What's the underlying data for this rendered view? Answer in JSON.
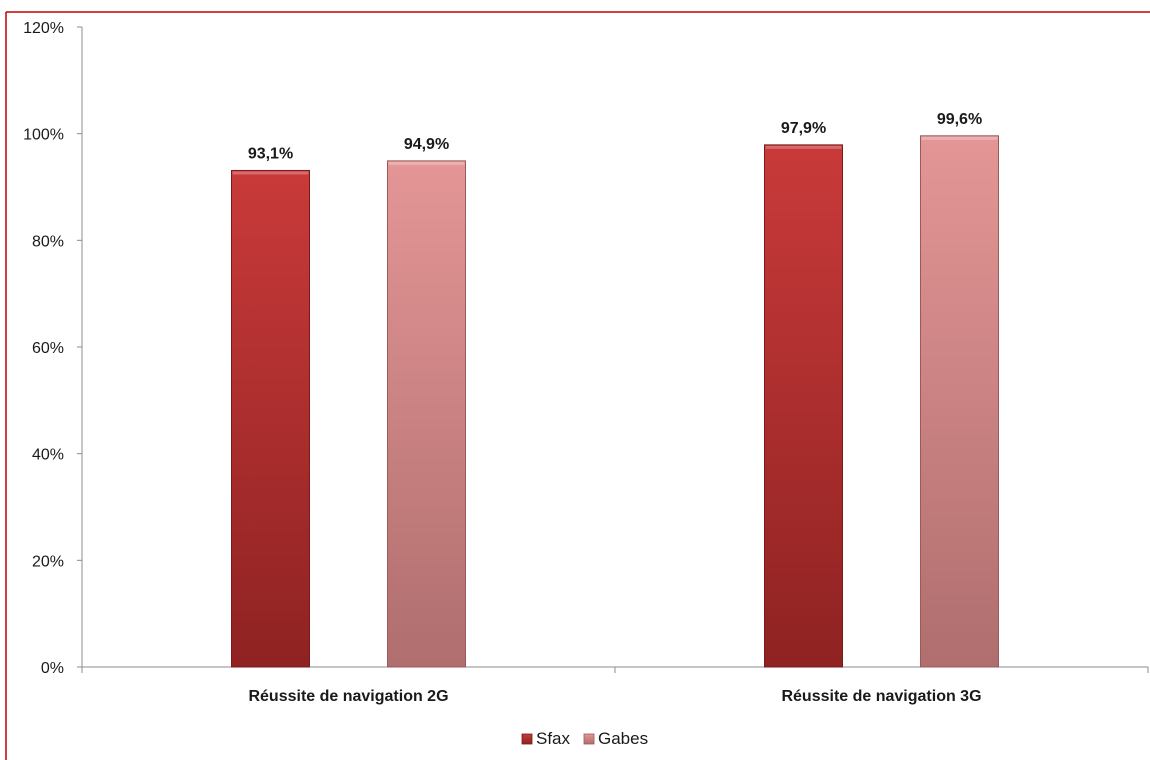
{
  "chart_data": {
    "type": "bar",
    "categories": [
      "Réussite de navigation 2G",
      "Réussite de navigation 3G"
    ],
    "series": [
      {
        "name": "Sfax",
        "values": [
          93.1,
          97.9
        ],
        "labels": [
          "93,1%",
          "97,9%"
        ],
        "color": "#b52a2a"
      },
      {
        "name": "Gabes",
        "values": [
          94.9,
          99.6
        ],
        "labels": [
          "94,9%",
          "99,6%"
        ],
        "color": "#d98080"
      }
    ],
    "ylim": [
      0,
      120
    ],
    "yticks": [
      0,
      20,
      40,
      60,
      80,
      100,
      120
    ],
    "ytick_labels": [
      "0%",
      "20%",
      "40%",
      "60%",
      "80%",
      "100%",
      "120%"
    ],
    "grid": false,
    "legend_position": "bottom",
    "title": "",
    "xlabel": "",
    "ylabel": ""
  },
  "frame_color": "#c00000"
}
